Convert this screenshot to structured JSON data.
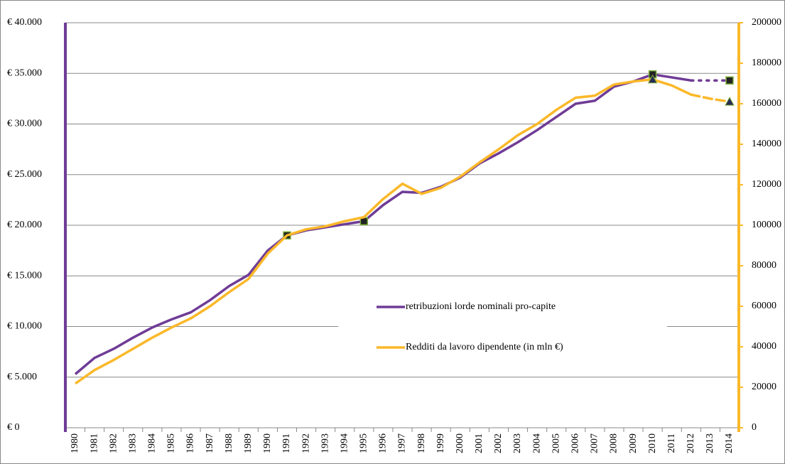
{
  "chart_data": {
    "type": "line",
    "categories": [
      "1980",
      "1981",
      "1982",
      "1983",
      "1984",
      "1985",
      "1986",
      "1987",
      "1988",
      "1989",
      "1990",
      "1991",
      "1992",
      "1993",
      "1994",
      "1995",
      "1996",
      "1997",
      "1998",
      "1999",
      "2000",
      "2001",
      "2002",
      "2003",
      "2004",
      "2005",
      "2006",
      "2007",
      "2008",
      "2009",
      "2010",
      "2011",
      "2012",
      "2013",
      "2014"
    ],
    "series": [
      {
        "name": "retribuzioni lorde nominali pro-capite",
        "color": "#6f3c96",
        "axis": "y",
        "values": [
          5300,
          6900,
          7800,
          8900,
          9900,
          10700,
          11400,
          12600,
          14000,
          15100,
          17500,
          19000,
          19500,
          19800,
          20100,
          20400,
          22000,
          23300,
          23200,
          23800,
          24700,
          26100,
          27100,
          28200,
          29400,
          30700,
          32000,
          32300,
          33700,
          34200,
          34900,
          34600,
          34300,
          34300,
          34300
        ],
        "dashed_from": 32,
        "markers": [
          11,
          15,
          30,
          34
        ],
        "marker": "square"
      },
      {
        "name": "Redditi da lavoro dipendente (in mln €)",
        "color": "#fbb829",
        "axis": "y2",
        "values": [
          21800,
          28500,
          33500,
          39000,
          44500,
          49500,
          54000,
          60000,
          67000,
          73500,
          86000,
          95000,
          98000,
          99500,
          102000,
          104000,
          113000,
          120500,
          115500,
          118500,
          124000,
          131000,
          137500,
          144500,
          150000,
          157000,
          163000,
          164000,
          169500,
          171000,
          172000,
          169000,
          164500,
          162500,
          161000
        ],
        "dashed_from": 32,
        "markers": [
          30,
          34
        ],
        "marker": "triangle"
      }
    ],
    "ylim": [
      0,
      40000
    ],
    "yticks": [
      {
        "value": 0,
        "label": "€ 0"
      },
      {
        "value": 5000,
        "label": "€ 5.000"
      },
      {
        "value": 10000,
        "label": "€ 10.000"
      },
      {
        "value": 15000,
        "label": "€ 15.000"
      },
      {
        "value": 20000,
        "label": "€ 20.000"
      },
      {
        "value": 25000,
        "label": "€ 25.000"
      },
      {
        "value": 30000,
        "label": "€ 30.000"
      },
      {
        "value": 35000,
        "label": "€ 35.000"
      },
      {
        "value": 40000,
        "label": "€ 40.000"
      }
    ],
    "y2lim": [
      0,
      200000
    ],
    "y2ticks": [
      0,
      20000,
      40000,
      60000,
      80000,
      100000,
      120000,
      140000,
      160000,
      180000,
      200000
    ],
    "grid": true
  }
}
